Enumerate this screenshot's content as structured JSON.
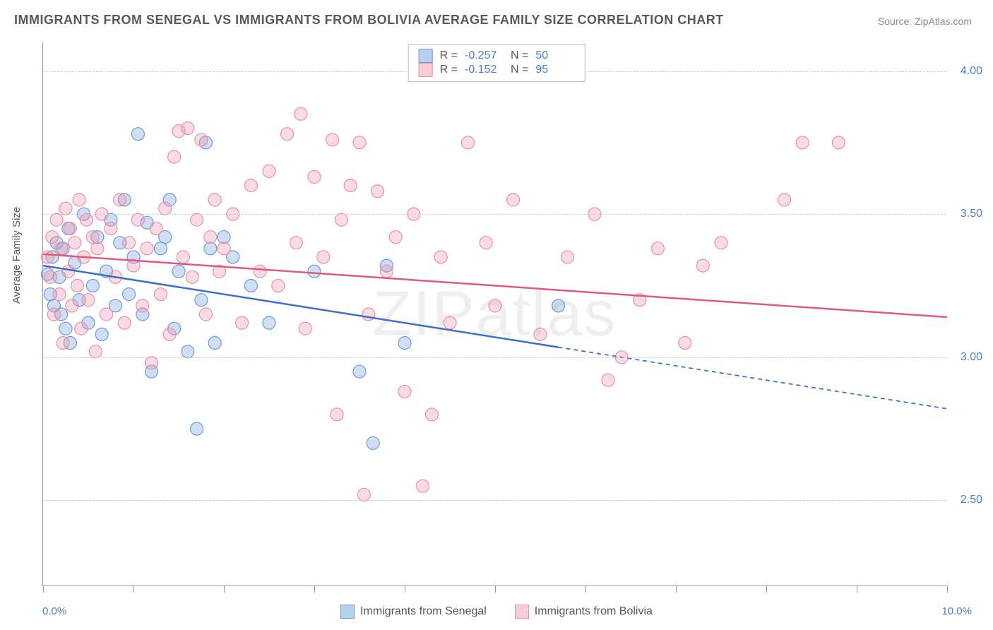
{
  "title": "IMMIGRANTS FROM SENEGAL VS IMMIGRANTS FROM BOLIVIA AVERAGE FAMILY SIZE CORRELATION CHART",
  "source": "Source: ZipAtlas.com",
  "ylabel": "Average Family Size",
  "watermark": "ZIPatlas",
  "chart": {
    "type": "scatter",
    "xlim": [
      0,
      10
    ],
    "ylim": [
      2.2,
      4.1
    ],
    "x_tick_positions": [
      0,
      1,
      2,
      3,
      4,
      5,
      6,
      7,
      8,
      9,
      10
    ],
    "x_tick_labels": {
      "0": "0.0%",
      "10": "10.0%"
    },
    "y_grid": [
      2.5,
      3.0,
      3.5,
      4.0
    ],
    "y_tick_labels": [
      "2.50",
      "3.00",
      "3.50",
      "4.00"
    ],
    "background_color": "#ffffff",
    "grid_color": "#cccccc",
    "grid_style": "dashed",
    "axis_color": "#999999",
    "tick_label_color": "#4a7dd6",
    "watermark_color": "rgba(120,120,120,0.12)"
  },
  "series": [
    {
      "name": "Immigrants from Senegal",
      "color_fill": "rgba(120,160,220,0.35)",
      "color_stroke": "#6b9bd8",
      "swatch_fill": "#b9d0ed",
      "swatch_border": "#6b9bd8",
      "marker_radius": 9,
      "R": "-0.257",
      "N": "50",
      "trend": {
        "x1": 0,
        "y1": 3.32,
        "x2": 10,
        "y2": 2.82,
        "solid_until_x": 5.7,
        "color": "#3b6fc9",
        "width": 2.5
      },
      "points": [
        [
          0.05,
          3.29
        ],
        [
          0.08,
          3.22
        ],
        [
          0.1,
          3.35
        ],
        [
          0.12,
          3.18
        ],
        [
          0.15,
          3.4
        ],
        [
          0.18,
          3.28
        ],
        [
          0.2,
          3.15
        ],
        [
          0.22,
          3.38
        ],
        [
          0.25,
          3.1
        ],
        [
          0.28,
          3.45
        ],
        [
          0.3,
          3.05
        ],
        [
          0.35,
          3.33
        ],
        [
          0.4,
          3.2
        ],
        [
          0.45,
          3.5
        ],
        [
          0.5,
          3.12
        ],
        [
          0.55,
          3.25
        ],
        [
          0.6,
          3.42
        ],
        [
          0.65,
          3.08
        ],
        [
          0.7,
          3.3
        ],
        [
          0.75,
          3.48
        ],
        [
          0.8,
          3.18
        ],
        [
          0.85,
          3.4
        ],
        [
          0.9,
          3.55
        ],
        [
          0.95,
          3.22
        ],
        [
          1.0,
          3.35
        ],
        [
          1.05,
          3.78
        ],
        [
          1.1,
          3.15
        ],
        [
          1.15,
          3.47
        ],
        [
          1.2,
          2.95
        ],
        [
          1.3,
          3.38
        ],
        [
          1.35,
          3.42
        ],
        [
          1.4,
          3.55
        ],
        [
          1.45,
          3.1
        ],
        [
          1.5,
          3.3
        ],
        [
          1.6,
          3.02
        ],
        [
          1.7,
          2.75
        ],
        [
          1.75,
          3.2
        ],
        [
          1.8,
          3.75
        ],
        [
          1.85,
          3.38
        ],
        [
          1.9,
          3.05
        ],
        [
          2.0,
          3.42
        ],
        [
          2.1,
          3.35
        ],
        [
          2.3,
          3.25
        ],
        [
          2.5,
          3.12
        ],
        [
          3.0,
          3.3
        ],
        [
          3.5,
          2.95
        ],
        [
          3.65,
          2.7
        ],
        [
          3.8,
          3.32
        ],
        [
          4.0,
          3.05
        ],
        [
          5.7,
          3.18
        ]
      ]
    },
    {
      "name": "Immigrants from Bolivia",
      "color_fill": "rgba(240,150,175,0.35)",
      "color_stroke": "#e890a8",
      "swatch_fill": "#f7cdd8",
      "swatch_border": "#e890a8",
      "marker_radius": 9,
      "R": "-0.152",
      "N": "95",
      "trend": {
        "x1": 0,
        "y1": 3.36,
        "x2": 10,
        "y2": 3.14,
        "solid_until_x": 10,
        "color": "#e05a7e",
        "width": 2.5
      },
      "points": [
        [
          0.05,
          3.35
        ],
        [
          0.08,
          3.28
        ],
        [
          0.1,
          3.42
        ],
        [
          0.12,
          3.15
        ],
        [
          0.15,
          3.48
        ],
        [
          0.18,
          3.22
        ],
        [
          0.2,
          3.38
        ],
        [
          0.22,
          3.05
        ],
        [
          0.25,
          3.52
        ],
        [
          0.28,
          3.3
        ],
        [
          0.3,
          3.45
        ],
        [
          0.32,
          3.18
        ],
        [
          0.35,
          3.4
        ],
        [
          0.38,
          3.25
        ],
        [
          0.4,
          3.55
        ],
        [
          0.42,
          3.1
        ],
        [
          0.45,
          3.35
        ],
        [
          0.48,
          3.48
        ],
        [
          0.5,
          3.2
        ],
        [
          0.55,
          3.42
        ],
        [
          0.58,
          3.02
        ],
        [
          0.6,
          3.38
        ],
        [
          0.65,
          3.5
        ],
        [
          0.7,
          3.15
        ],
        [
          0.75,
          3.45
        ],
        [
          0.8,
          3.28
        ],
        [
          0.85,
          3.55
        ],
        [
          0.9,
          3.12
        ],
        [
          0.95,
          3.4
        ],
        [
          1.0,
          3.32
        ],
        [
          1.05,
          3.48
        ],
        [
          1.1,
          3.18
        ],
        [
          1.15,
          3.38
        ],
        [
          1.2,
          2.98
        ],
        [
          1.25,
          3.45
        ],
        [
          1.3,
          3.22
        ],
        [
          1.35,
          3.52
        ],
        [
          1.4,
          3.08
        ],
        [
          1.45,
          3.7
        ],
        [
          1.5,
          3.79
        ],
        [
          1.55,
          3.35
        ],
        [
          1.6,
          3.8
        ],
        [
          1.65,
          3.28
        ],
        [
          1.7,
          3.48
        ],
        [
          1.75,
          3.76
        ],
        [
          1.8,
          3.15
        ],
        [
          1.85,
          3.42
        ],
        [
          1.9,
          3.55
        ],
        [
          1.95,
          3.3
        ],
        [
          2.0,
          3.38
        ],
        [
          2.1,
          3.5
        ],
        [
          2.2,
          3.12
        ],
        [
          2.3,
          3.6
        ],
        [
          2.4,
          3.3
        ],
        [
          2.5,
          3.65
        ],
        [
          2.6,
          3.25
        ],
        [
          2.7,
          3.78
        ],
        [
          2.8,
          3.4
        ],
        [
          2.85,
          3.85
        ],
        [
          2.9,
          3.1
        ],
        [
          3.0,
          3.63
        ],
        [
          3.1,
          3.35
        ],
        [
          3.2,
          3.76
        ],
        [
          3.25,
          2.8
        ],
        [
          3.3,
          3.48
        ],
        [
          3.4,
          3.6
        ],
        [
          3.5,
          3.75
        ],
        [
          3.55,
          2.52
        ],
        [
          3.6,
          3.15
        ],
        [
          3.7,
          3.58
        ],
        [
          3.8,
          3.3
        ],
        [
          3.9,
          3.42
        ],
        [
          4.0,
          2.88
        ],
        [
          4.1,
          3.5
        ],
        [
          4.2,
          2.55
        ],
        [
          4.3,
          2.8
        ],
        [
          4.4,
          3.35
        ],
        [
          4.5,
          3.12
        ],
        [
          4.7,
          3.75
        ],
        [
          4.9,
          3.4
        ],
        [
          5.0,
          3.18
        ],
        [
          5.2,
          3.55
        ],
        [
          5.5,
          3.08
        ],
        [
          5.8,
          3.35
        ],
        [
          6.1,
          3.5
        ],
        [
          6.25,
          2.92
        ],
        [
          6.4,
          3.0
        ],
        [
          6.8,
          3.38
        ],
        [
          7.3,
          3.32
        ],
        [
          7.5,
          3.4
        ],
        [
          8.2,
          3.55
        ],
        [
          8.8,
          3.75
        ],
        [
          8.4,
          3.75
        ],
        [
          7.1,
          3.05
        ],
        [
          6.6,
          3.2
        ]
      ]
    }
  ],
  "stats_labels": {
    "R": "R =",
    "N": "N ="
  },
  "legend_labels": [
    "Immigrants from Senegal",
    "Immigrants from Bolivia"
  ]
}
